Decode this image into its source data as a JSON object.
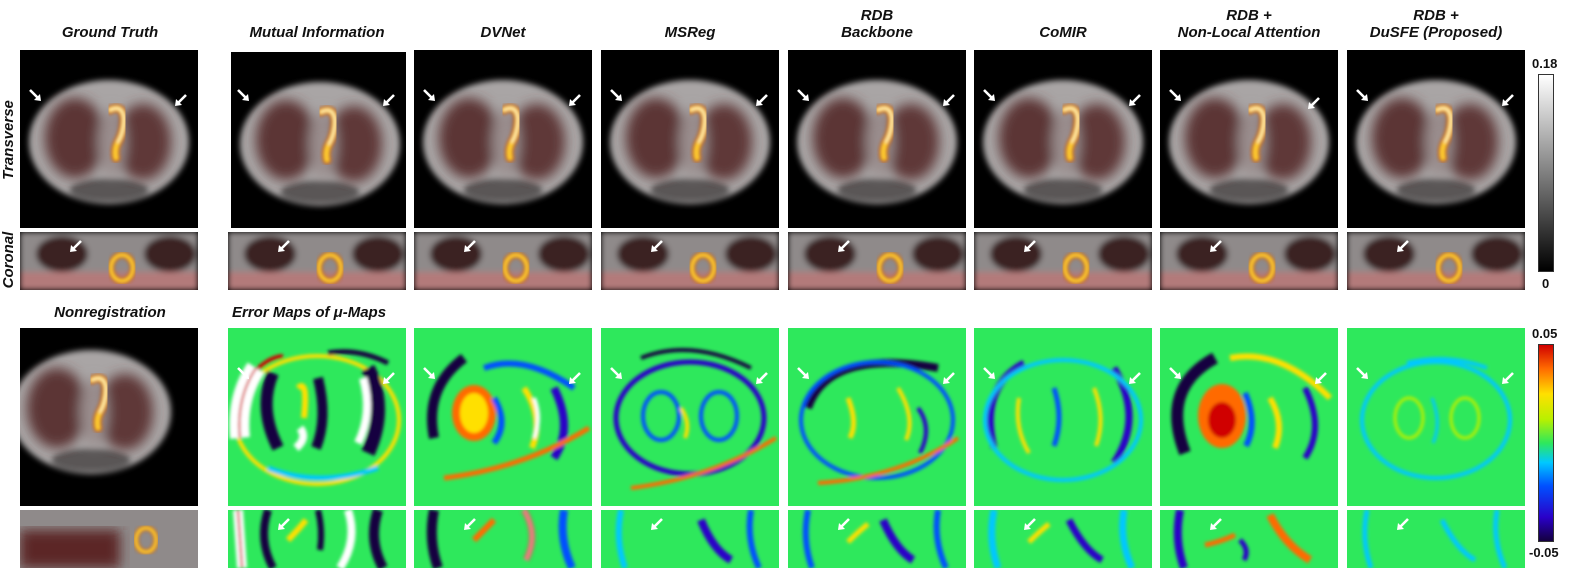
{
  "columns": {
    "ground_truth": [
      "Ground Truth"
    ],
    "mutual_information": [
      "Mutual Information"
    ],
    "dvnet": [
      "DVNet"
    ],
    "msreg": [
      "MSReg"
    ],
    "rdb_backbone": [
      "RDB",
      "Backbone"
    ],
    "comir": [
      "CoMIR"
    ],
    "rdb_nla": [
      "RDB +",
      "Non-Local Attention"
    ],
    "rdb_dusfe": [
      "RDB +",
      "DuSFE (Proposed)"
    ]
  },
  "row_labels": {
    "transverse": "Transverse",
    "coronal": "Coronal"
  },
  "bottom_labels": {
    "nonregistration": "Nonregistration",
    "error_maps": "Error Maps of μ-Maps"
  },
  "colorbar_gray": {
    "max": "0.18",
    "min": "0"
  },
  "colorbar_jet": {
    "max": "0.05",
    "min": "-0.05"
  },
  "colors": {
    "error_background": "#2ee85c",
    "pet_hot": "#ffcc33"
  }
}
